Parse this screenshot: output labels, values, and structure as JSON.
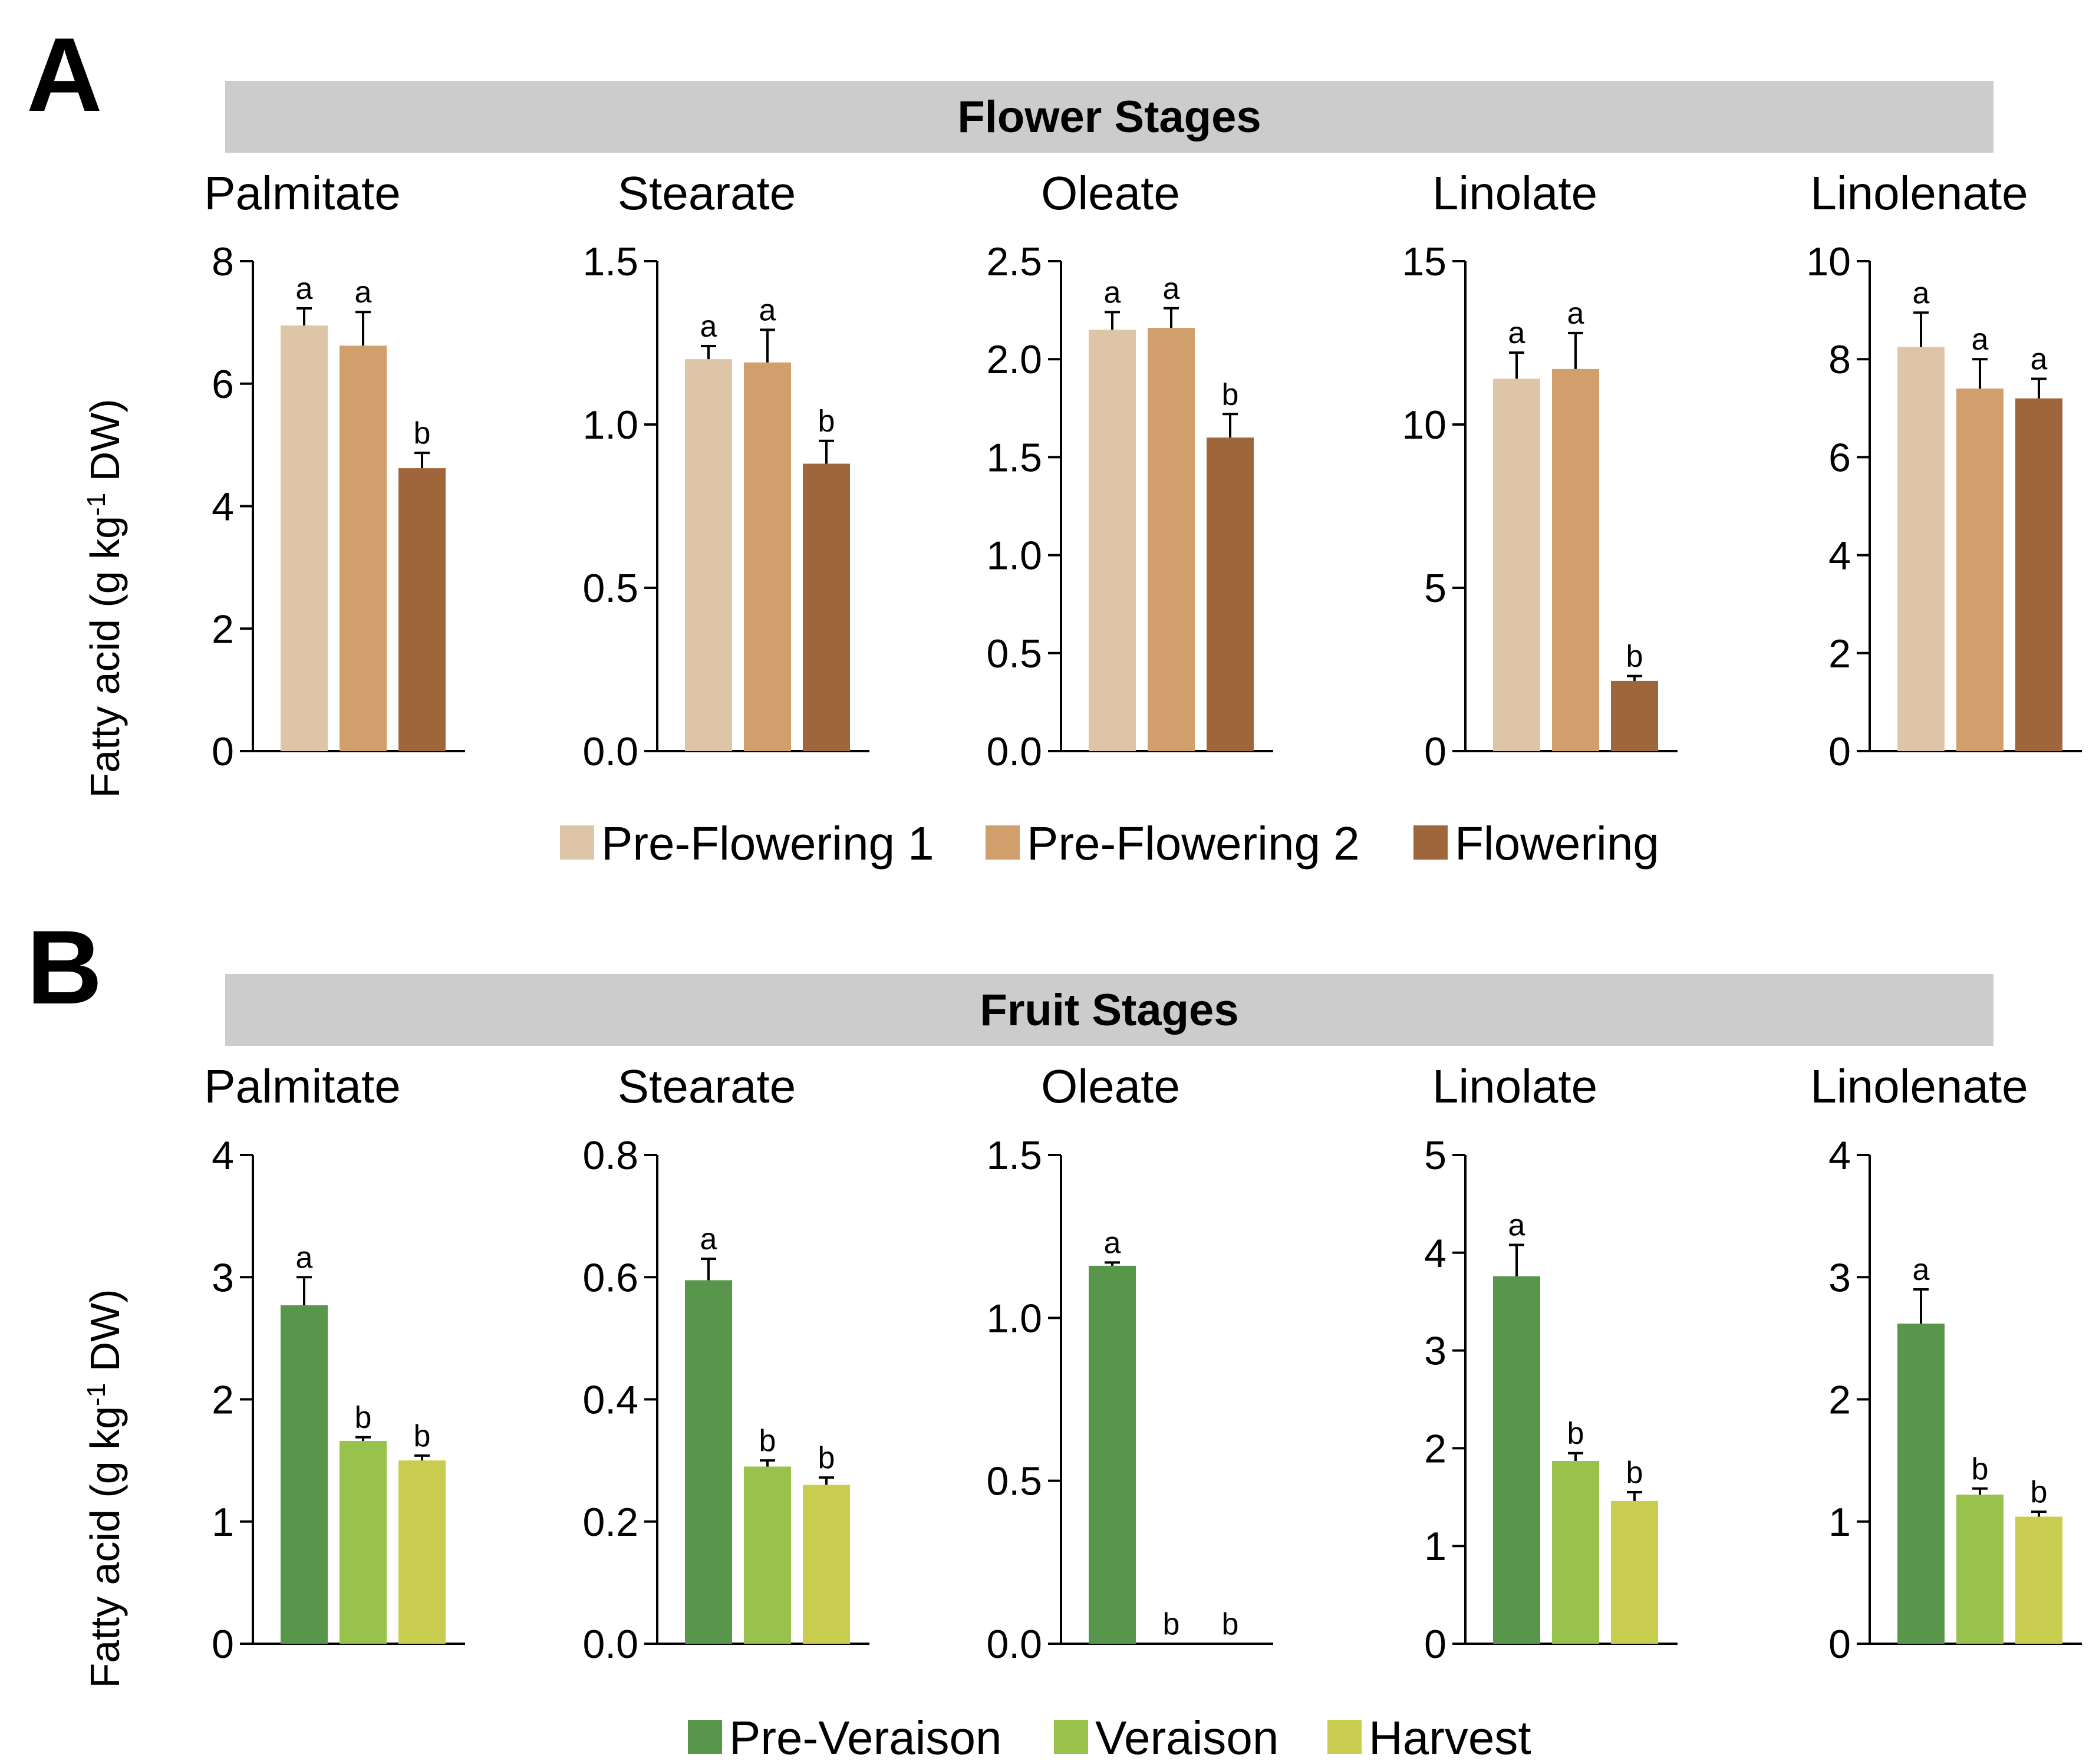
{
  "panels": [
    {
      "letter": "A",
      "banner": "Flower Stages",
      "ylabel_main": "Fatty acid (g kg",
      "ylabel_sup": "-1",
      "ylabel_tail": " DW)",
      "legend": [
        {
          "label": "Pre-Flowering 1",
          "color": "#DEC5A7"
        },
        {
          "label": "Pre-Flowering 2",
          "color": "#D19F6C"
        },
        {
          "label": "Flowering",
          "color": "#A0663B"
        }
      ]
    },
    {
      "letter": "B",
      "banner": "Fruit Stages",
      "ylabel_main": "Fatty acid (g kg",
      "ylabel_sup": "-1",
      "ylabel_tail": " DW)",
      "legend": [
        {
          "label": "Pre-Veraison",
          "color": "#58964B"
        },
        {
          "label": "Veraison",
          "color": "#99C24D"
        },
        {
          "label": "Harvest",
          "color": "#C8CD50"
        }
      ]
    }
  ],
  "chart_data": [
    {
      "type": "bar",
      "panel": "A",
      "title": "Palmitate",
      "ylabel": "Fatty acid (g kg-1 DW)",
      "ylim": [
        0,
        8
      ],
      "ticks": [
        "0",
        "2",
        "4",
        "6",
        "8"
      ],
      "categories": [
        "Pre-Flowering 1",
        "Pre-Flowering 2",
        "Flowering"
      ],
      "values": [
        6.95,
        6.62,
        4.62
      ],
      "errors": [
        0.28,
        0.55,
        0.25
      ],
      "letters": [
        "a",
        "a",
        "b"
      ]
    },
    {
      "type": "bar",
      "panel": "A",
      "title": "Stearate",
      "ylabel": "Fatty acid (g kg-1 DW)",
      "ylim": [
        0,
        1.5
      ],
      "ticks": [
        "0.0",
        "0.5",
        "1.0",
        "1.5"
      ],
      "categories": [
        "Pre-Flowering 1",
        "Pre-Flowering 2",
        "Flowering"
      ],
      "values": [
        1.2,
        1.19,
        0.88
      ],
      "errors": [
        0.04,
        0.1,
        0.07
      ],
      "letters": [
        "a",
        "a",
        "b"
      ]
    },
    {
      "type": "bar",
      "panel": "A",
      "title": "Oleate",
      "ylabel": "Fatty acid (g kg-1 DW)",
      "ylim": [
        0,
        2.5
      ],
      "ticks": [
        "0.0",
        "0.5",
        "1.0",
        "1.5",
        "2.0",
        "2.5"
      ],
      "categories": [
        "Pre-Flowering 1",
        "Pre-Flowering 2",
        "Flowering"
      ],
      "values": [
        2.15,
        2.16,
        1.6
      ],
      "errors": [
        0.09,
        0.1,
        0.12
      ],
      "letters": [
        "a",
        "a",
        "b"
      ]
    },
    {
      "type": "bar",
      "panel": "A",
      "title": "Linolate",
      "ylabel": "Fatty acid (g kg-1 DW)",
      "ylim": [
        0,
        15
      ],
      "ticks": [
        "0",
        "5",
        "10",
        "15"
      ],
      "categories": [
        "Pre-Flowering 1",
        "Pre-Flowering 2",
        "Flowering"
      ],
      "values": [
        11.4,
        11.7,
        2.15
      ],
      "errors": [
        0.8,
        1.1,
        0.15
      ],
      "letters": [
        "a",
        "a",
        "b"
      ]
    },
    {
      "type": "bar",
      "panel": "A",
      "title": "Linolenate",
      "ylabel": "Fatty acid (g kg-1 DW)",
      "ylim": [
        0,
        10
      ],
      "ticks": [
        "0",
        "2",
        "4",
        "6",
        "8",
        "10"
      ],
      "categories": [
        "Pre-Flowering 1",
        "Pre-Flowering 2",
        "Flowering"
      ],
      "values": [
        8.25,
        7.4,
        7.2
      ],
      "errors": [
        0.7,
        0.6,
        0.4
      ],
      "letters": [
        "a",
        "a",
        "a"
      ]
    },
    {
      "type": "bar",
      "panel": "B",
      "title": "Palmitate",
      "ylabel": "Fatty acid (g kg-1 DW)",
      "ylim": [
        0,
        4
      ],
      "ticks": [
        "0",
        "1",
        "2",
        "3",
        "4"
      ],
      "categories": [
        "Pre-Veraison",
        "Veraison",
        "Harvest"
      ],
      "values": [
        2.77,
        1.66,
        1.5
      ],
      "errors": [
        0.23,
        0.03,
        0.04
      ],
      "letters": [
        "a",
        "b",
        "b"
      ]
    },
    {
      "type": "bar",
      "panel": "B",
      "title": "Stearate",
      "ylabel": "Fatty acid (g kg-1 DW)",
      "ylim": [
        0,
        0.8
      ],
      "ticks": [
        "0.0",
        "0.2",
        "0.4",
        "0.6",
        "0.8"
      ],
      "categories": [
        "Pre-Veraison",
        "Veraison",
        "Harvest"
      ],
      "values": [
        0.595,
        0.29,
        0.26
      ],
      "errors": [
        0.035,
        0.01,
        0.012
      ],
      "letters": [
        "a",
        "b",
        "b"
      ]
    },
    {
      "type": "bar",
      "panel": "B",
      "title": "Oleate",
      "ylabel": "Fatty acid (g kg-1 DW)",
      "ylim": [
        0,
        1.5
      ],
      "ticks": [
        "0.0",
        "0.5",
        "1.0",
        "1.5"
      ],
      "categories": [
        "Pre-Veraison",
        "Veraison",
        "Harvest"
      ],
      "values": [
        1.16,
        0,
        0
      ],
      "errors": [
        0.01,
        0,
        0
      ],
      "letters": [
        "a",
        "b",
        "b"
      ]
    },
    {
      "type": "bar",
      "panel": "B",
      "title": "Linolate",
      "ylabel": "Fatty acid (g kg-1 DW)",
      "ylim": [
        0,
        5
      ],
      "ticks": [
        "0",
        "1",
        "2",
        "3",
        "4",
        "5"
      ],
      "categories": [
        "Pre-Veraison",
        "Veraison",
        "Harvest"
      ],
      "values": [
        3.76,
        1.87,
        1.46
      ],
      "errors": [
        0.32,
        0.08,
        0.09
      ],
      "letters": [
        "a",
        "b",
        "b"
      ]
    },
    {
      "type": "bar",
      "panel": "B",
      "title": "Linolenate",
      "ylabel": "Fatty acid (g kg-1 DW)",
      "ylim": [
        0,
        4
      ],
      "ticks": [
        "0",
        "1",
        "2",
        "3",
        "4"
      ],
      "categories": [
        "Pre-Veraison",
        "Veraison",
        "Harvest"
      ],
      "values": [
        2.62,
        1.22,
        1.04
      ],
      "errors": [
        0.28,
        0.05,
        0.04
      ],
      "letters": [
        "a",
        "b",
        "b"
      ]
    }
  ]
}
